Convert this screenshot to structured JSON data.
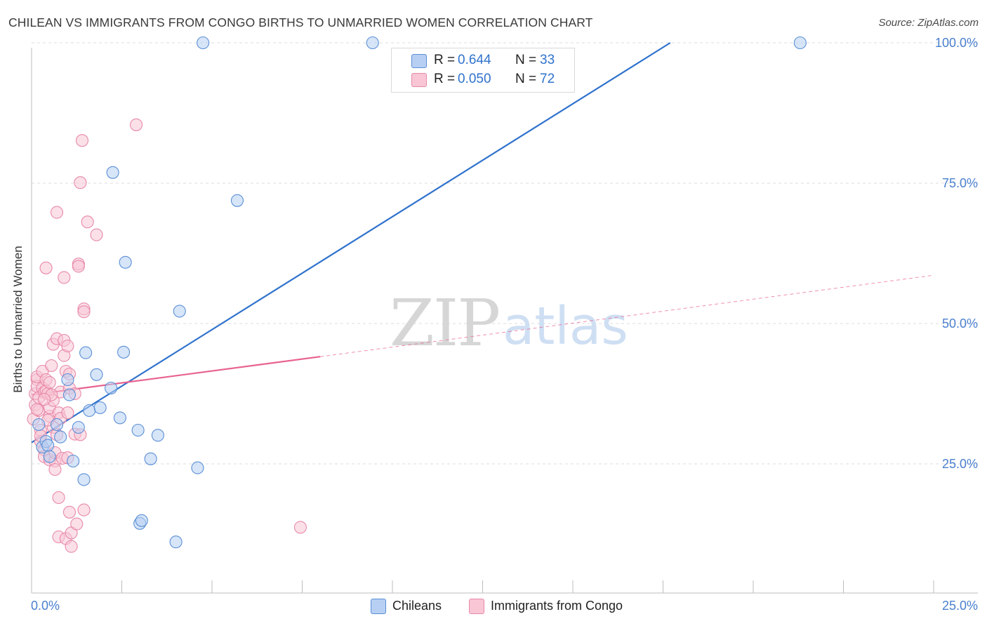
{
  "title": "CHILEAN VS IMMIGRANTS FROM CONGO BIRTHS TO UNMARRIED WOMEN CORRELATION CHART",
  "source": "Source: ZipAtlas.com",
  "watermark": {
    "zip": "ZIP",
    "atlas": "atlas"
  },
  "colors": {
    "blue": "#5b8fd6",
    "blue_fill": "#b7cff2",
    "blue_line": "#2f72cc",
    "pink": "#e889a8",
    "pink_fill": "#f8c6d5",
    "pink_line": "#e8628f",
    "axis_text": "#4a7fce",
    "grid": "#dcdcdc"
  },
  "legend_top": [
    {
      "r_label": "R =",
      "r_value": "0.644",
      "n_label": "N =",
      "n_value": "33",
      "color": "blue"
    },
    {
      "r_label": "R =",
      "r_value": "0.050",
      "n_label": "N =",
      "n_value": "72",
      "color": "pink"
    }
  ],
  "chart_data": {
    "type": "scatter",
    "title": "CHILEAN VS IMMIGRANTS FROM CONGO BIRTHS TO UNMARRIED WOMEN CORRELATION CHART",
    "xlabel": "",
    "ylabel": "Births to Unmarried Women",
    "xlim": [
      0,
      25
    ],
    "ylim": [
      2,
      102
    ],
    "x_tick_labels": [
      "0.0%",
      "25.0%"
    ],
    "y_ticks": [
      25,
      50,
      75,
      100
    ],
    "y_tick_labels": [
      "25.0%",
      "50.0%",
      "75.0%",
      "100.0%"
    ],
    "grid": true,
    "legend_position": "bottom",
    "series": [
      {
        "name": "Chileans",
        "color": "blue",
        "R": 0.644,
        "N": 33,
        "trend": {
          "x": [
            0,
            17.7
          ],
          "y": [
            28.8,
            100
          ]
        },
        "points": [
          [
            0.2,
            32
          ],
          [
            0.3,
            28
          ],
          [
            0.4,
            29
          ],
          [
            0.45,
            28.3
          ],
          [
            0.5,
            26.3
          ],
          [
            0.7,
            32
          ],
          [
            0.8,
            29.8
          ],
          [
            1.0,
            40
          ],
          [
            1.05,
            37.3
          ],
          [
            1.15,
            25.5
          ],
          [
            1.3,
            31.5
          ],
          [
            1.45,
            22.2
          ],
          [
            1.5,
            44.8
          ],
          [
            1.6,
            34.5
          ],
          [
            1.8,
            40.9
          ],
          [
            1.9,
            35
          ],
          [
            2.2,
            38.5
          ],
          [
            2.45,
            33.2
          ],
          [
            2.55,
            44.9
          ],
          [
            2.6,
            60.9
          ],
          [
            2.25,
            76.9
          ],
          [
            2.95,
            31
          ],
          [
            3.0,
            14.4
          ],
          [
            3.05,
            14.9
          ],
          [
            3.5,
            30.1
          ],
          [
            3.3,
            25.9
          ],
          [
            4.0,
            11.1
          ],
          [
            4.1,
            52.2
          ],
          [
            4.6,
            24.3
          ],
          [
            4.75,
            100
          ],
          [
            5.7,
            71.9
          ],
          [
            9.45,
            100
          ],
          [
            21.3,
            100
          ]
        ]
      },
      {
        "name": "Immigrants from Congo",
        "color": "pink",
        "R": 0.05,
        "N": 72,
        "trend_solid": {
          "x": [
            0,
            8.0
          ],
          "y": [
            37.3,
            44.1
          ]
        },
        "trend_dashed": {
          "x": [
            8.0,
            25
          ],
          "y": [
            44.1,
            58.6
          ]
        },
        "points": [
          [
            0.05,
            33
          ],
          [
            0.1,
            35.5
          ],
          [
            0.1,
            37.5
          ],
          [
            0.15,
            40
          ],
          [
            0.15,
            38.8
          ],
          [
            0.15,
            40.5
          ],
          [
            0.2,
            34.5
          ],
          [
            0.2,
            36.8
          ],
          [
            0.25,
            31
          ],
          [
            0.25,
            29
          ],
          [
            0.3,
            38.5
          ],
          [
            0.3,
            41.5
          ],
          [
            0.35,
            37.8
          ],
          [
            0.35,
            27.5
          ],
          [
            0.35,
            26.3
          ],
          [
            0.4,
            38
          ],
          [
            0.4,
            40
          ],
          [
            0.45,
            37.5
          ],
          [
            0.5,
            33.5
          ],
          [
            0.5,
            39.5
          ],
          [
            0.5,
            35
          ],
          [
            0.5,
            25.7
          ],
          [
            0.55,
            42.5
          ],
          [
            0.6,
            36.3
          ],
          [
            0.6,
            46.3
          ],
          [
            0.6,
            31.5
          ],
          [
            0.65,
            25.5
          ],
          [
            0.65,
            24
          ],
          [
            0.65,
            27
          ],
          [
            0.7,
            30.2
          ],
          [
            0.7,
            47.3
          ],
          [
            0.7,
            69.8
          ],
          [
            0.75,
            19
          ],
          [
            0.75,
            34.1
          ],
          [
            0.75,
            12
          ],
          [
            0.8,
            37.8
          ],
          [
            0.8,
            33.1
          ],
          [
            0.85,
            26
          ],
          [
            0.9,
            47
          ],
          [
            0.9,
            44.3
          ],
          [
            0.9,
            58.2
          ],
          [
            0.95,
            41.5
          ],
          [
            0.95,
            11.7
          ],
          [
            1.0,
            46
          ],
          [
            1.0,
            34.1
          ],
          [
            1.0,
            26.1
          ],
          [
            1.05,
            41
          ],
          [
            1.05,
            16.4
          ],
          [
            1.05,
            38.5
          ],
          [
            1.1,
            10.3
          ],
          [
            1.1,
            12.7
          ],
          [
            1.2,
            30.3
          ],
          [
            1.25,
            14.3
          ],
          [
            1.2,
            37.5
          ],
          [
            1.3,
            60.6
          ],
          [
            1.35,
            30.2
          ],
          [
            1.35,
            75.1
          ],
          [
            1.3,
            60.2
          ],
          [
            1.4,
            82.6
          ],
          [
            1.45,
            16.8
          ],
          [
            1.45,
            52.6
          ],
          [
            1.45,
            52.1
          ],
          [
            1.55,
            68.1
          ],
          [
            1.8,
            65.8
          ],
          [
            2.9,
            85.4
          ],
          [
            0.4,
            59.9
          ],
          [
            0.25,
            30
          ],
          [
            0.55,
            37.3
          ],
          [
            0.45,
            32.8
          ],
          [
            0.35,
            36.5
          ],
          [
            0.15,
            34.7
          ],
          [
            7.45,
            13.7
          ]
        ]
      }
    ]
  },
  "legend_bottom": [
    {
      "label": "Chileans",
      "color": "blue"
    },
    {
      "label": "Immigrants from Congo",
      "color": "pink"
    }
  ]
}
